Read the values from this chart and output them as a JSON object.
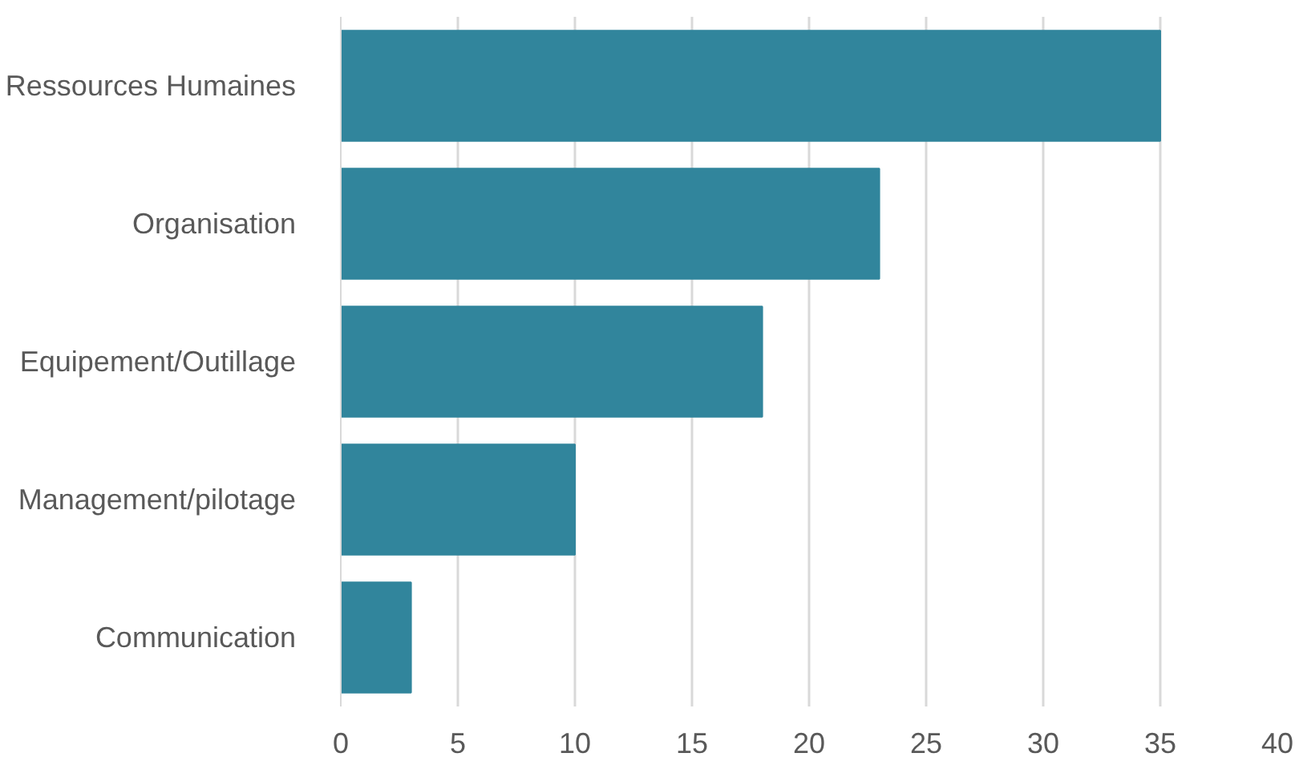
{
  "chart_data": {
    "type": "bar",
    "orientation": "horizontal",
    "categories": [
      "Ressources Humaines",
      "Organisation",
      "Equipement/Outillage",
      "Management/pilotage",
      "Communication"
    ],
    "values": [
      35,
      23,
      18,
      10,
      3
    ],
    "color": "#31859c",
    "xlim": [
      0,
      40
    ],
    "xticks": [
      0,
      5,
      10,
      15,
      20,
      25,
      30,
      35,
      40
    ],
    "grid": "x"
  }
}
